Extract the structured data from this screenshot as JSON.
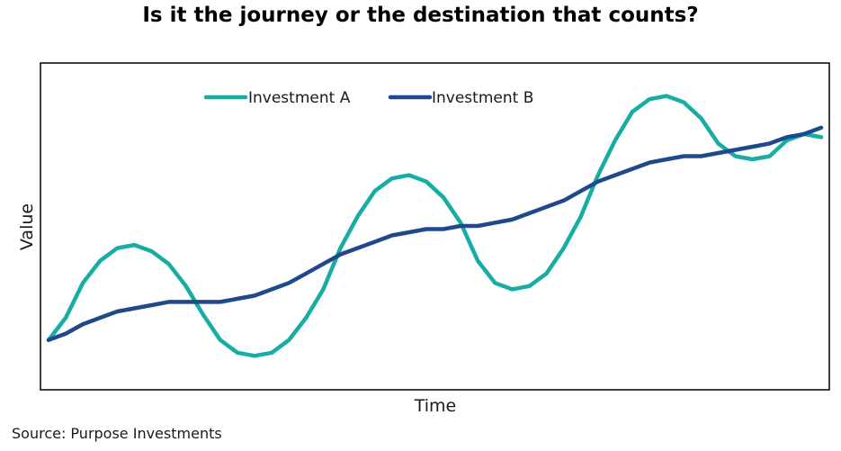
{
  "chart_data": {
    "type": "line",
    "title": "Is it the journey or the destination that counts?",
    "xlabel": "Time",
    "ylabel": "Value",
    "source": "Source: Purpose Investments",
    "legend_position": "top-left",
    "grid": false,
    "x": [
      0,
      1,
      2,
      3,
      4,
      5,
      6,
      7,
      8,
      9,
      10,
      11,
      12,
      13,
      14,
      15,
      16,
      17,
      18,
      19,
      20,
      21,
      22,
      23,
      24,
      25,
      26,
      27,
      28,
      29,
      30,
      31,
      32,
      33,
      34,
      35,
      36,
      37,
      38,
      39,
      40,
      41,
      42,
      43,
      44,
      45
    ],
    "ylim": [
      0,
      100
    ],
    "series": [
      {
        "name": "Investment A",
        "color": "#17ada5",
        "values": [
          16,
          23,
          34,
          41,
          45,
          46,
          44,
          40,
          33,
          24,
          16,
          12,
          11,
          12,
          16,
          23,
          32,
          45,
          55,
          63,
          67,
          68,
          66,
          61,
          53,
          41,
          34,
          32,
          33,
          37,
          45,
          55,
          68,
          79,
          88,
          92,
          93,
          91,
          86,
          78,
          74,
          73,
          74,
          79,
          81,
          80
        ]
      },
      {
        "name": "Investment B",
        "color": "#1e4a8c",
        "values": [
          16,
          18,
          21,
          23,
          25,
          26,
          27,
          28,
          28,
          28,
          28,
          29,
          30,
          32,
          34,
          37,
          40,
          43,
          45,
          47,
          49,
          50,
          51,
          51,
          52,
          52,
          53,
          54,
          56,
          58,
          60,
          63,
          66,
          68,
          70,
          72,
          73,
          74,
          74,
          75,
          76,
          77,
          78,
          80,
          81,
          83
        ]
      }
    ]
  }
}
